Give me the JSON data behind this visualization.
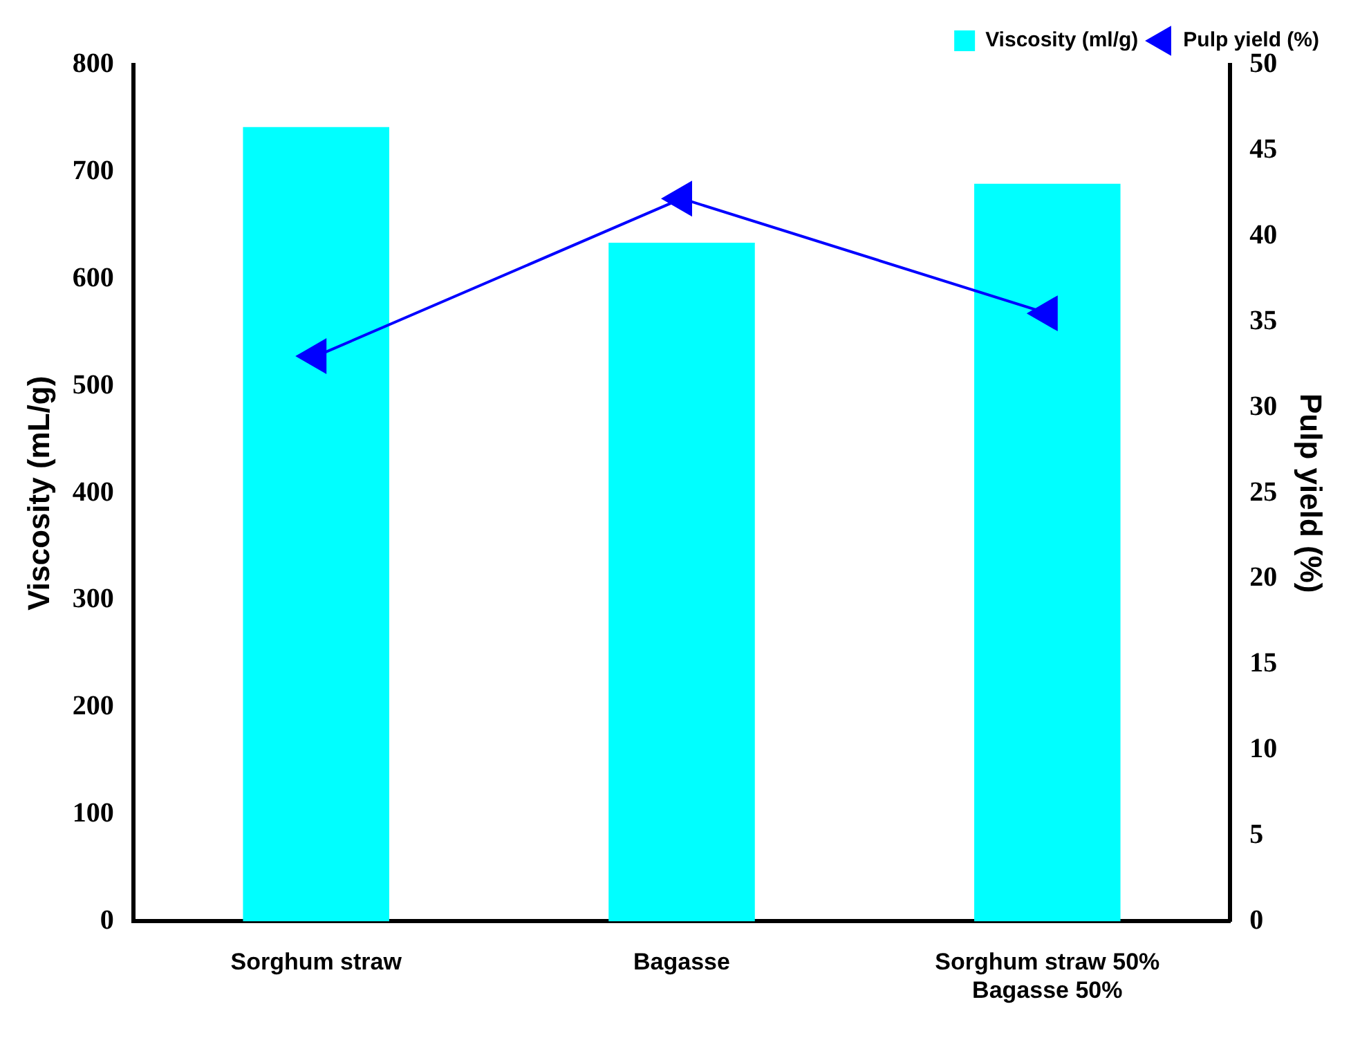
{
  "chart_data": {
    "type": "bar",
    "ylabel": "Viscosity (mL/g)",
    "y2label": "Pulp yield (%)",
    "categories": [
      "Sorghum straw",
      "Bagasse",
      "Sorghum straw 50%\nBagasse 50%"
    ],
    "series": [
      {
        "name": "Viscosity (ml/g)",
        "color": "#00ffff",
        "values": [
          742,
          634,
          689
        ]
      },
      {
        "name": "Pulp yield (%)",
        "type": "line",
        "axis": "y2",
        "color": "#0000ff",
        "marker": "triangle",
        "values": [
          33.0,
          42.2,
          35.5
        ]
      }
    ],
    "ylim": [
      0,
      800
    ],
    "yticks": [
      0,
      100,
      200,
      300,
      400,
      500,
      600,
      700,
      800
    ],
    "y2lim": [
      0,
      50
    ],
    "y2ticks": [
      0,
      5,
      10,
      15,
      20,
      25,
      30,
      35,
      40,
      45,
      50
    ],
    "grid": false,
    "legend": "top right"
  }
}
